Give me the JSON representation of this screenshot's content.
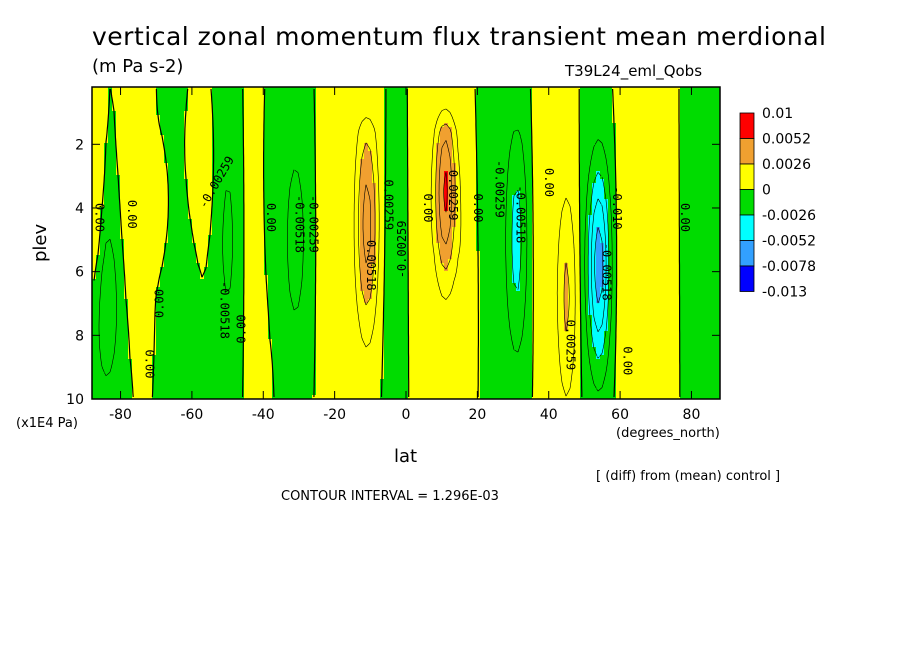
{
  "chart_data": {
    "type": "heatmap",
    "title": "vertical zonal momentum flux transient mean merdional",
    "subtitle": "(m Pa s-2)",
    "run_name": "T39L24_eml_Qobs",
    "xlabel": "lat",
    "x_unit": "(degrees_north)",
    "ylabel": "plev",
    "y_unit": "(x1E4 Pa)",
    "xlim": [
      -88,
      88
    ],
    "ylim": [
      10,
      0.2
    ],
    "x_ticks": [
      "-80",
      "-60",
      "-40",
      "-20",
      "0",
      "20",
      "40",
      "60",
      "80"
    ],
    "y_ticks": [
      "2",
      "4",
      "6",
      "8",
      "10"
    ],
    "contour_interval": "CONTOUR INTERVAL = 1.296E-03",
    "note": "[ (diff) from (mean) control ]",
    "legend": {
      "position": "right",
      "labels": [
        "0.01",
        "0.0052",
        "0.0026",
        "0",
        "-0.0026",
        "-0.0052",
        "-0.0078",
        "-0.013"
      ],
      "colors": [
        "#ff0000",
        "#f0a030",
        "#ffff00",
        "#00dc00",
        "#00ffff",
        "#32a0ff",
        "#0000ff"
      ]
    },
    "contour_labels": [
      {
        "text": "0.00",
        "x": -86,
        "y": 4.3,
        "rot": 90
      },
      {
        "text": "0.00",
        "x": -77,
        "y": 4.2,
        "rot": 90
      },
      {
        "text": "0.00",
        "x": -69,
        "y": 7.0,
        "rot": -90
      },
      {
        "text": "0.00",
        "x": -72,
        "y": 8.9,
        "rot": 90
      },
      {
        "text": "-0.00259",
        "x": -53,
        "y": 3.2,
        "rot": -60
      },
      {
        "text": "-0.00518",
        "x": -51,
        "y": 7.2,
        "rot": 90
      },
      {
        "text": "0.00",
        "x": -46,
        "y": 7.8,
        "rot": -90
      },
      {
        "text": "0.00",
        "x": -38,
        "y": 4.3,
        "rot": 90
      },
      {
        "text": "-0.00518",
        "x": -30,
        "y": 4.5,
        "rot": 90
      },
      {
        "text": "-0.00259",
        "x": -26,
        "y": 4.5,
        "rot": 90
      },
      {
        "text": "0.00518",
        "x": -10,
        "y": 5.8,
        "rot": 90
      },
      {
        "text": "0.00259",
        "x": -5,
        "y": 3.9,
        "rot": 90
      },
      {
        "text": "-0.00259",
        "x": -1,
        "y": 5.3,
        "rot": -90
      },
      {
        "text": "0.00",
        "x": 6,
        "y": 4.0,
        "rot": 90
      },
      {
        "text": "0.00259",
        "x": 13,
        "y": 3.6,
        "rot": 90
      },
      {
        "text": "0.00",
        "x": 20,
        "y": 4.0,
        "rot": 90
      },
      {
        "text": "-0.00259",
        "x": 26,
        "y": 3.4,
        "rot": 90
      },
      {
        "text": "-0.00518",
        "x": 32,
        "y": 4.2,
        "rot": 90
      },
      {
        "text": "0.00",
        "x": 40,
        "y": 3.2,
        "rot": 90
      },
      {
        "text": "0.00259",
        "x": 46,
        "y": 8.3,
        "rot": 90
      },
      {
        "text": "-0.00518",
        "x": 56,
        "y": 6.0,
        "rot": 90
      },
      {
        "text": "-0.010",
        "x": 59,
        "y": 4.0,
        "rot": 90
      },
      {
        "text": "0.00",
        "x": 62,
        "y": 8.8,
        "rot": 90
      },
      {
        "text": "0.00",
        "x": 78,
        "y": 4.3,
        "rot": 90
      }
    ]
  }
}
